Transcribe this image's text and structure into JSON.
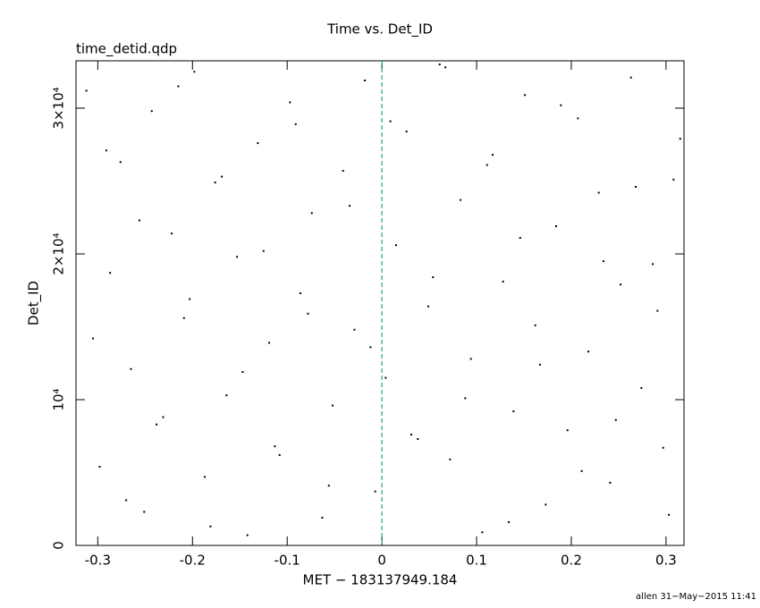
{
  "chart_data": {
    "type": "scatter",
    "title": "Time vs. Det_ID",
    "subtitle": "time_detid.qdp",
    "x_label": "MET − 183137949.184",
    "y_label": "Det_ID",
    "footer": "allen 31−May−2015 11:41",
    "xlim": [
      -0.323,
      0.319
    ],
    "ylim": [
      0,
      33250
    ],
    "xticks": [
      -0.3,
      -0.2,
      -0.1,
      0,
      0.1,
      0.2,
      0.3
    ],
    "yticks": [
      0,
      {
        "value": 10000,
        "label": "10⁴"
      },
      {
        "value": 20000,
        "label": "2×10⁴"
      },
      {
        "value": 30000,
        "label": "3×10⁴"
      }
    ],
    "vline": {
      "x": 0,
      "color": "#2a9d9d"
    },
    "series": [
      {
        "color": "#000000",
        "x": [
          -0.312,
          -0.298,
          -0.287,
          -0.276,
          -0.265,
          -0.251,
          -0.243,
          -0.231,
          -0.222,
          -0.209,
          -0.198,
          -0.187,
          -0.176,
          -0.164,
          -0.153,
          -0.142,
          -0.131,
          -0.119,
          -0.108,
          -0.097,
          -0.086,
          -0.074,
          -0.063,
          -0.052,
          -0.041,
          -0.029,
          -0.018,
          -0.007,
          0.004,
          0.015,
          0.026,
          0.038,
          0.049,
          0.061,
          0.072,
          0.083,
          0.094,
          0.106,
          0.117,
          0.128,
          0.139,
          0.151,
          0.162,
          0.173,
          0.184,
          0.196,
          0.207,
          0.218,
          0.229,
          0.241,
          0.252,
          0.263,
          0.274,
          0.286,
          0.297,
          0.308,
          -0.305,
          -0.291,
          -0.27,
          -0.256,
          -0.238,
          -0.215,
          -0.203,
          -0.181,
          -0.169,
          -0.147,
          -0.125,
          -0.113,
          -0.091,
          -0.078,
          -0.056,
          -0.034,
          -0.012,
          0.009,
          0.031,
          0.054,
          0.067,
          0.088,
          0.111,
          0.134,
          0.146,
          0.167,
          0.189,
          0.211,
          0.234,
          0.247,
          0.268,
          0.291,
          0.303,
          0.315
        ],
        "values": [
          31200,
          5400,
          18700,
          26300,
          12100,
          2300,
          29800,
          8800,
          21400,
          15600,
          32500,
          4700,
          24900,
          10300,
          19800,
          700,
          27600,
          13900,
          6200,
          30400,
          17300,
          22800,
          1900,
          9600,
          25700,
          14800,
          31900,
          3700,
          11500,
          20600,
          28400,
          7300,
          16400,
          33000,
          5900,
          23700,
          12800,
          900,
          26800,
          18100,
          9200,
          30900,
          15100,
          2800,
          21900,
          7900,
          29300,
          13300,
          24200,
          4300,
          17900,
          32100,
          10800,
          19300,
          6700,
          25100,
          14200,
          27100,
          3100,
          22300,
          8300,
          31500,
          16900,
          1300,
          25300,
          11900,
          20200,
          6800,
          28900,
          15900,
          4100,
          23300,
          13600,
          29100,
          7600,
          18400,
          32800,
          10100,
          26100,
          1600,
          21100,
          12400,
          30200,
          5100,
          19500,
          8600,
          24600,
          16100,
          2100,
          27900
        ]
      }
    ]
  }
}
